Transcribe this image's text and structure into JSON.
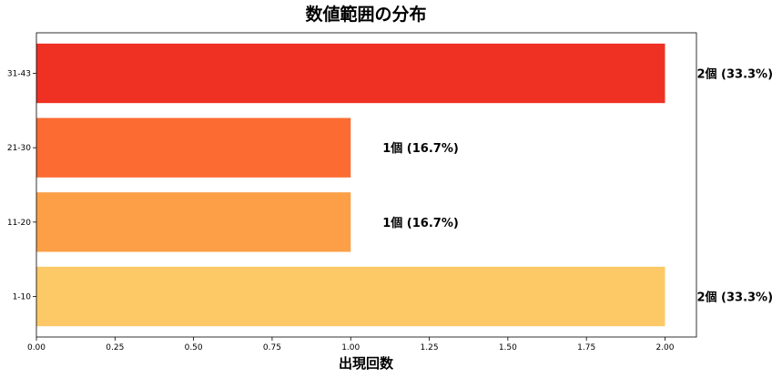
{
  "chart_data": {
    "type": "bar",
    "orientation": "horizontal",
    "title": "数値範囲の分布",
    "xlabel": "出現回数",
    "ylabel": "",
    "categories": [
      "1-10",
      "11-20",
      "21-30",
      "31-43"
    ],
    "values": [
      2,
      1,
      1,
      2
    ],
    "data_labels": [
      "2個 (33.3%)",
      "1個 (16.7%)",
      "1個 (16.7%)",
      "2個 (33.3%)"
    ],
    "colors": [
      "#fdc966",
      "#fd9f46",
      "#fb6b32",
      "#ef3124"
    ],
    "xlim": [
      0,
      2.1
    ],
    "xticks": [
      0.0,
      0.25,
      0.5,
      0.75,
      1.0,
      1.25,
      1.5,
      1.75,
      2.0
    ],
    "xtick_labels": [
      "0.00",
      "0.25",
      "0.50",
      "0.75",
      "1.00",
      "1.25",
      "1.50",
      "1.75",
      "2.00"
    ],
    "grid": false,
    "legend": "none"
  }
}
